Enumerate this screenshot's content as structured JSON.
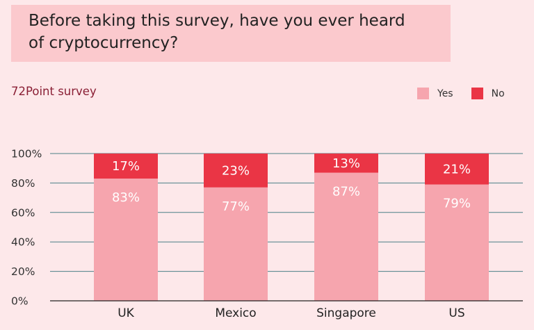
{
  "header": {
    "title": "Before taking this survey, have you ever heard of cryptocurrency?"
  },
  "subtitle": "72Point survey",
  "legend": [
    {
      "label": "Yes",
      "color": "#f6a5ae"
    },
    {
      "label": "No",
      "color": "#ea3545"
    }
  ],
  "chart_data": {
    "type": "bar",
    "stacked": true,
    "title": "Before taking this survey, have you ever heard of cryptocurrency?",
    "subtitle": "72Point survey",
    "categories": [
      "UK",
      "Mexico",
      "Singapore",
      "US"
    ],
    "series": [
      {
        "name": "Yes",
        "values": [
          83,
          77,
          87,
          79
        ],
        "labels": [
          "83%",
          "77%",
          "87%",
          "79%"
        ],
        "color": "#f6a5ae"
      },
      {
        "name": "No",
        "values": [
          17,
          23,
          13,
          21
        ],
        "labels": [
          "17%",
          "23%",
          "13%",
          "21%"
        ],
        "color": "#ea3545"
      }
    ],
    "y_ticks": [
      "0%",
      "20%",
      "40%",
      "60%",
      "80%",
      "100%"
    ],
    "ylim": [
      0,
      100
    ],
    "grid": true,
    "legend_position": "top-right"
  }
}
